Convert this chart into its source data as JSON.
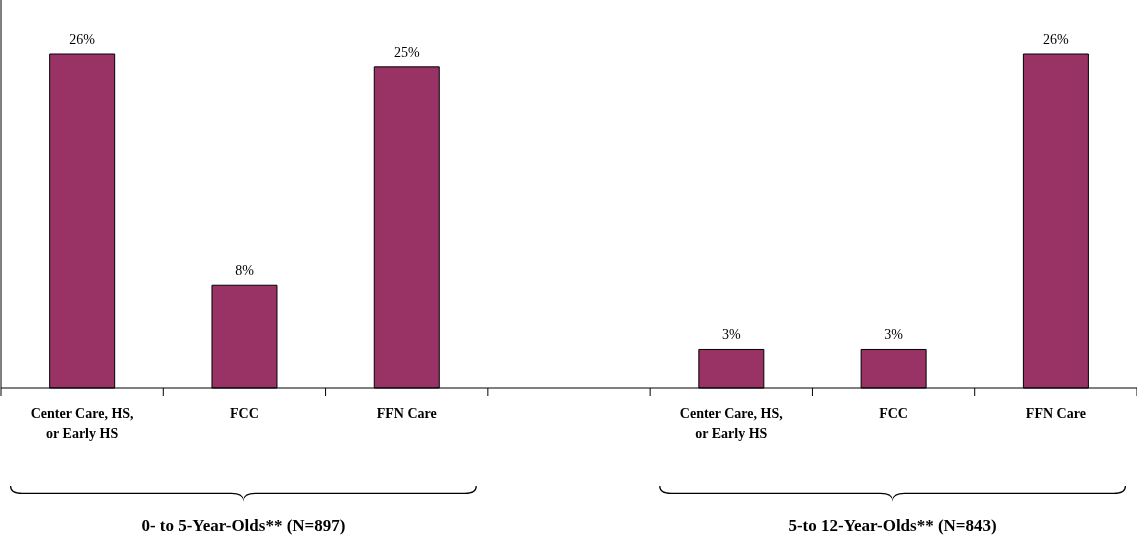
{
  "chart_data": {
    "type": "bar",
    "categories": [
      "Center Care, HS, or Early HS",
      "FCC",
      "FFN Care",
      null,
      "Center Care, HS, or Early HS",
      "FCC",
      "FFN Care"
    ],
    "values": [
      26,
      8,
      25,
      null,
      3,
      3,
      26
    ],
    "value_labels": [
      "26%",
      "8%",
      "25%",
      null,
      "3%",
      "3%",
      "26%"
    ],
    "color": "#993366",
    "annotations": [
      "0- to 5-Year-Olds** (N=897)",
      "5-to 12-Year-Olds** (N=843)"
    ]
  }
}
